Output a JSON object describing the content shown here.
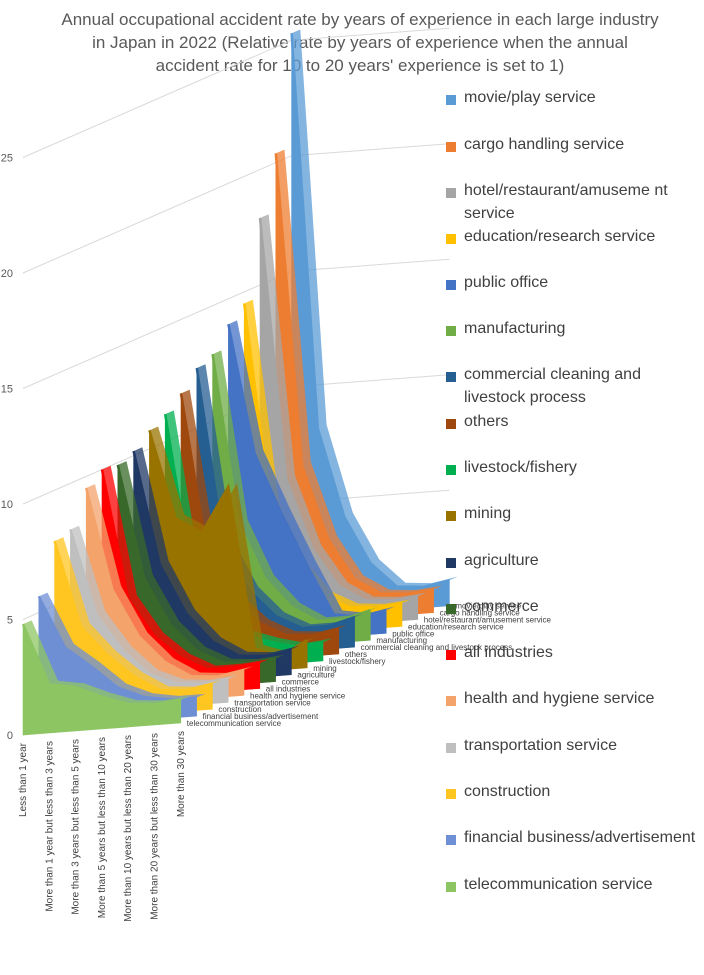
{
  "chart_data": {
    "type": "area",
    "title": "Annual occupational accident rate by years of experience in each large industry in Japan in 2022 (Relative rate by years of experience when the annual accident rate for 10 to 20 years' experience is set to 1)",
    "ylim": [
      0,
      25
    ],
    "yticks": [
      0,
      5,
      10,
      15,
      20,
      25
    ],
    "grid": true,
    "legend_position": "right",
    "categories": [
      "Less than 1 year",
      "More than 1 year but less than 3 years",
      "More than 3 years but less than 5 years",
      "More than 5 years but less than 10 years",
      "More than 10 years but less than 20 years",
      "More than 20 years but less than 30 years",
      "More than 30 years"
    ],
    "series": [
      {
        "name": "movie/play service",
        "color": "#5b9bd5",
        "values": [
          25.3,
          8.1,
          4.2,
          2.1,
          1.0,
          0.9,
          1.1
        ]
      },
      {
        "name": "cargo handling service",
        "color": "#ed7d31",
        "values": [
          20.4,
          6.8,
          3.5,
          1.7,
          1.0,
          0.9,
          1.0
        ]
      },
      {
        "name": "hotel/restaurant/amusement service",
        "color": "#a5a5a5",
        "values": [
          17.9,
          6.5,
          3.4,
          1.7,
          1.0,
          0.9,
          1.0
        ]
      },
      {
        "name": "education/research service",
        "color": "#ffc000",
        "values": [
          14.5,
          5.6,
          3.0,
          1.6,
          1.0,
          0.9,
          1.0
        ]
      },
      {
        "name": "public office",
        "color": "#4472c4",
        "values": [
          13.9,
          8.2,
          5.6,
          3.2,
          1.0,
          0.8,
          1.0
        ]
      },
      {
        "name": "manufacturing",
        "color": "#70ad47",
        "values": [
          12.9,
          5.5,
          3.0,
          1.7,
          1.0,
          1.0,
          1.3
        ]
      },
      {
        "name": "commercial cleaning and livestock process",
        "color": "#255e91",
        "values": [
          12.6,
          5.0,
          2.8,
          1.6,
          1.0,
          1.0,
          1.3
        ]
      },
      {
        "name": "others",
        "color": "#9e480e",
        "values": [
          11.8,
          4.8,
          2.7,
          1.6,
          1.0,
          0.9,
          1.1
        ]
      },
      {
        "name": "livestock/fishery",
        "color": "#00b050",
        "values": [
          11.2,
          4.2,
          2.6,
          1.4,
          1.0,
          0.7,
          0.8
        ]
      },
      {
        "name": "mining",
        "color": "#997300",
        "values": [
          10.8,
          6.9,
          6.2,
          8.1,
          1.0,
          0.6,
          1.2
        ]
      },
      {
        "name": "agriculture",
        "color": "#203864",
        "values": [
          10.2,
          5.2,
          3.0,
          1.7,
          1.0,
          0.9,
          1.1
        ]
      },
      {
        "name": "commerce",
        "color": "#38692a",
        "values": [
          9.9,
          4.9,
          2.8,
          1.6,
          1.0,
          0.9,
          1.0
        ]
      },
      {
        "name": "all industries",
        "color": "#ff0000",
        "values": [
          10.0,
          4.3,
          2.6,
          1.6,
          1.0,
          1.0,
          1.1
        ]
      },
      {
        "name": "health and hygiene service",
        "color": "#f4a36b",
        "values": [
          9.5,
          5.0,
          2.9,
          1.7,
          1.0,
          0.9,
          1.1
        ]
      },
      {
        "name": "transportation service",
        "color": "#bfbfbf",
        "values": [
          8.0,
          4.2,
          2.6,
          1.5,
          1.0,
          0.9,
          1.0
        ]
      },
      {
        "name": "construction",
        "color": "#ffc621",
        "values": [
          7.8,
          4.0,
          2.7,
          1.7,
          1.0,
          0.9,
          1.1
        ]
      },
      {
        "name": "financial business/advertisement",
        "color": "#6f8fd4",
        "values": [
          5.7,
          3.4,
          2.5,
          1.5,
          1.0,
          0.8,
          0.8
        ]
      },
      {
        "name": "telecommunication service",
        "color": "#8dc563",
        "values": [
          4.8,
          2.1,
          1.9,
          1.4,
          1.0,
          0.9,
          1.0
        ]
      }
    ]
  },
  "legend_labels": [
    "movie/play service",
    "cargo handling service",
    "hotel/restaurant/amuseme nt service",
    "education/research service",
    "public office",
    "manufacturing",
    "commercial cleaning and livestock process",
    "others",
    "livestock/fishery",
    "mining",
    "agriculture",
    "commerce",
    "all industries",
    "health and hygiene service",
    "transportation service",
    "construction",
    "financial business/advertisement",
    "telecommunication service"
  ]
}
